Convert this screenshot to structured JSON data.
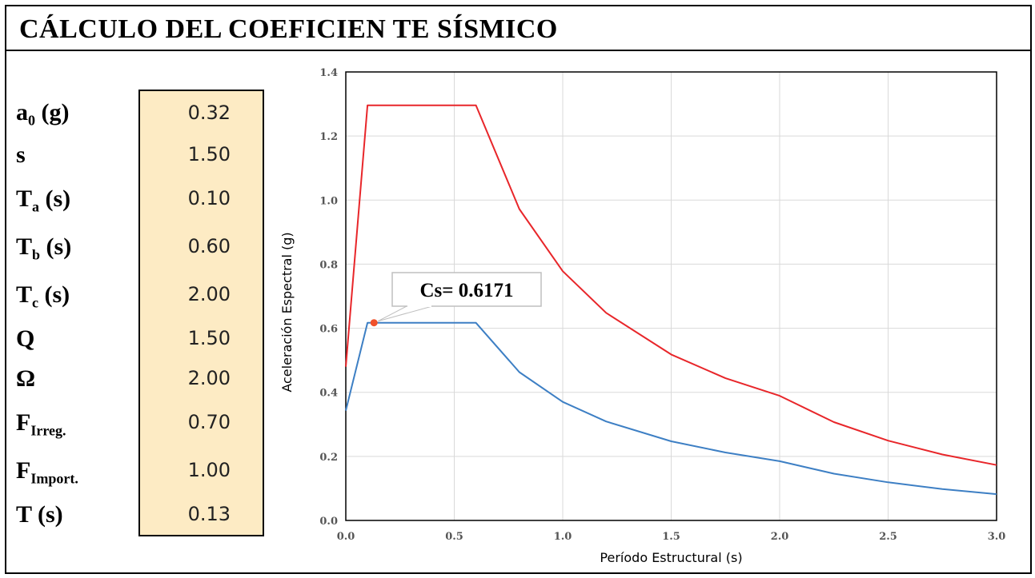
{
  "title": "CÁLCULO DEL COEFICIEN TE SÍSMICO",
  "params": [
    {
      "base": "a",
      "sub": "0",
      "unit": " (g)",
      "value": "0.32"
    },
    {
      "base": "s",
      "sub": "",
      "unit": "",
      "value": "1.50"
    },
    {
      "base": "T",
      "sub": "a",
      "unit": " (s)",
      "value": "0.10"
    },
    {
      "base": "T",
      "sub": "b",
      "unit": " (s)",
      "value": "0.60"
    },
    {
      "base": "T",
      "sub": "c",
      "unit": " (s)",
      "value": "2.00"
    },
    {
      "base": "Q",
      "sub": "",
      "unit": "",
      "value": "1.50"
    },
    {
      "base": "Ω",
      "sub": "",
      "unit": "",
      "value": "2.00"
    },
    {
      "base": "F",
      "sub": "Irreg.",
      "unit": "",
      "value": "0.70"
    },
    {
      "base": "F",
      "sub": "Import.",
      "unit": "",
      "value": "1.00"
    },
    {
      "base": "T",
      "sub": "",
      "unit": " (s)",
      "value": "0.13"
    }
  ],
  "chart_data": {
    "type": "line",
    "xlabel": "Período Estructural (s)",
    "ylabel": "Aceleración Espectral (g)",
    "xlim": [
      0,
      3
    ],
    "ylim": [
      0,
      1.4
    ],
    "xticks": [
      "0.0",
      "0.5",
      "1.0",
      "1.5",
      "2.0",
      "2.5",
      "3.0"
    ],
    "yticks": [
      "0.0",
      "0.2",
      "0.4",
      "0.6",
      "0.8",
      "1.0",
      "1.2",
      "1.4"
    ],
    "grid": true,
    "series": [
      {
        "color": "#e8262a",
        "x": [
          0,
          0.1,
          0.6,
          0.8,
          1.0,
          1.2,
          1.5,
          1.75,
          2.0,
          2.25,
          2.5,
          2.75,
          3.0
        ],
        "y": [
          0.48,
          1.296,
          1.296,
          0.972,
          0.778,
          0.648,
          0.518,
          0.444,
          0.389,
          0.307,
          0.249,
          0.206,
          0.173
        ]
      },
      {
        "color": "#3d7fc4",
        "x": [
          0,
          0.1,
          0.6,
          0.8,
          1.0,
          1.2,
          1.5,
          1.75,
          2.0,
          2.25,
          2.5,
          2.75,
          3.0
        ],
        "y": [
          0.343,
          0.617,
          0.617,
          0.463,
          0.37,
          0.309,
          0.247,
          0.212,
          0.185,
          0.146,
          0.119,
          0.098,
          0.082
        ]
      }
    ],
    "point": {
      "x": 0.13,
      "y": 0.6171,
      "color": "#f0502a"
    },
    "annotation": "Cs= 0.6171"
  }
}
